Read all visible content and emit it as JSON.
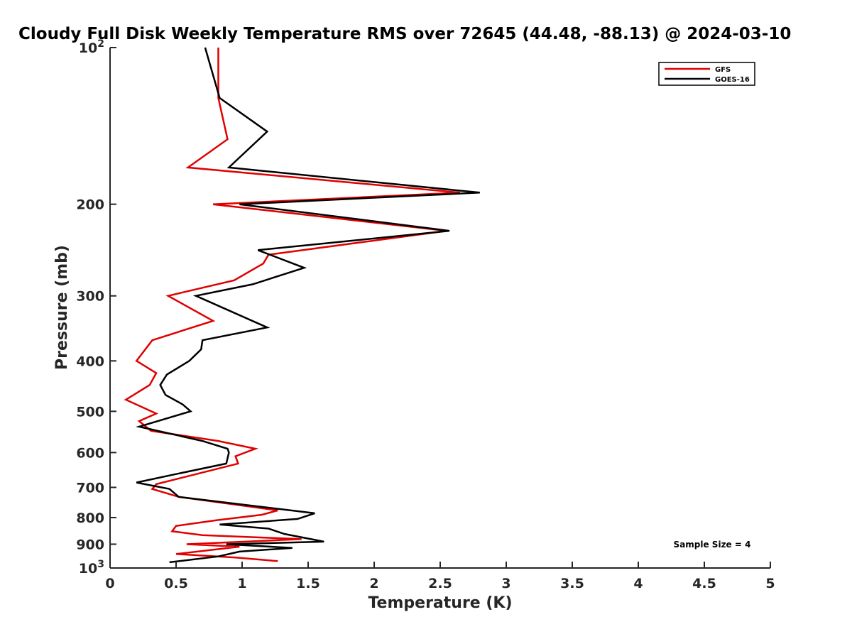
{
  "chart_data": {
    "type": "line",
    "title": "Cloudy Full Disk Weekly Temperature RMS over 72645 (44.48, -88.13) @ 2024-03-10",
    "xlabel": "Temperature (K)",
    "ylabel": "Pressure (mb)",
    "xlim": [
      0,
      5
    ],
    "ylim": [
      100,
      1000
    ],
    "y_scale": "log",
    "y_reversed": true,
    "x_ticks": [
      "0",
      "0.5",
      "1",
      "1.5",
      "2",
      "2.5",
      "3",
      "3.5",
      "4",
      "4.5",
      "5"
    ],
    "y_ticks": [
      {
        "value": 100,
        "base": "10",
        "exp": "2"
      },
      {
        "value": 200,
        "label": "200"
      },
      {
        "value": 300,
        "label": "300"
      },
      {
        "value": 400,
        "label": "400"
      },
      {
        "value": 500,
        "label": "500"
      },
      {
        "value": 600,
        "label": "600"
      },
      {
        "value": 700,
        "label": "700"
      },
      {
        "value": 800,
        "label": "800"
      },
      {
        "value": 900,
        "label": "900"
      },
      {
        "value": 1000,
        "base": "10",
        "exp": "3"
      }
    ],
    "grid": false,
    "legend": "top-right",
    "annotation": "Sample Size = 4",
    "series": [
      {
        "name": "GFS",
        "color": "#e00000",
        "points": [
          [
            0.82,
            100
          ],
          [
            0.82,
            125
          ],
          [
            0.89,
            150
          ],
          [
            0.59,
            170
          ],
          [
            2.65,
            190
          ],
          [
            0.78,
            200
          ],
          [
            2.55,
            225
          ],
          [
            1.2,
            250
          ],
          [
            1.16,
            260
          ],
          [
            0.94,
            280
          ],
          [
            0.44,
            300
          ],
          [
            0.78,
            335
          ],
          [
            0.32,
            365
          ],
          [
            0.2,
            400
          ],
          [
            0.35,
            422
          ],
          [
            0.3,
            445
          ],
          [
            0.12,
            475
          ],
          [
            0.35,
            505
          ],
          [
            0.22,
            522
          ],
          [
            0.31,
            545
          ],
          [
            0.82,
            570
          ],
          [
            1.1,
            590
          ],
          [
            0.95,
            610
          ],
          [
            0.97,
            630
          ],
          [
            0.35,
            690
          ],
          [
            0.32,
            705
          ],
          [
            0.52,
            730
          ],
          [
            1.27,
            775
          ],
          [
            1.15,
            790
          ],
          [
            0.8,
            810
          ],
          [
            0.5,
            830
          ],
          [
            0.47,
            850
          ],
          [
            0.7,
            865
          ],
          [
            1.45,
            880
          ],
          [
            0.58,
            900
          ],
          [
            0.98,
            910
          ],
          [
            0.5,
            940
          ],
          [
            0.95,
            955
          ],
          [
            1.27,
            970
          ]
        ]
      },
      {
        "name": "GOES-16",
        "color": "#000000",
        "points": [
          [
            0.72,
            100
          ],
          [
            0.83,
            125
          ],
          [
            1.19,
            145
          ],
          [
            0.9,
            170
          ],
          [
            2.8,
            190
          ],
          [
            0.98,
            200
          ],
          [
            2.57,
            225
          ],
          [
            1.12,
            245
          ],
          [
            1.47,
            265
          ],
          [
            1.08,
            285
          ],
          [
            0.65,
            300
          ],
          [
            1.19,
            345
          ],
          [
            0.7,
            365
          ],
          [
            0.69,
            380
          ],
          [
            0.6,
            400
          ],
          [
            0.43,
            425
          ],
          [
            0.38,
            445
          ],
          [
            0.42,
            465
          ],
          [
            0.55,
            485
          ],
          [
            0.61,
            500
          ],
          [
            0.22,
            535
          ],
          [
            0.7,
            570
          ],
          [
            0.89,
            590
          ],
          [
            0.9,
            600
          ],
          [
            0.88,
            630
          ],
          [
            0.5,
            660
          ],
          [
            0.2,
            685
          ],
          [
            0.45,
            705
          ],
          [
            0.52,
            730
          ],
          [
            1.55,
            785
          ],
          [
            1.42,
            805
          ],
          [
            0.83,
            825
          ],
          [
            1.2,
            840
          ],
          [
            1.32,
            860
          ],
          [
            1.62,
            890
          ],
          [
            0.88,
            900
          ],
          [
            1.38,
            915
          ],
          [
            0.98,
            930
          ],
          [
            0.82,
            950
          ],
          [
            0.45,
            975
          ]
        ]
      }
    ]
  }
}
